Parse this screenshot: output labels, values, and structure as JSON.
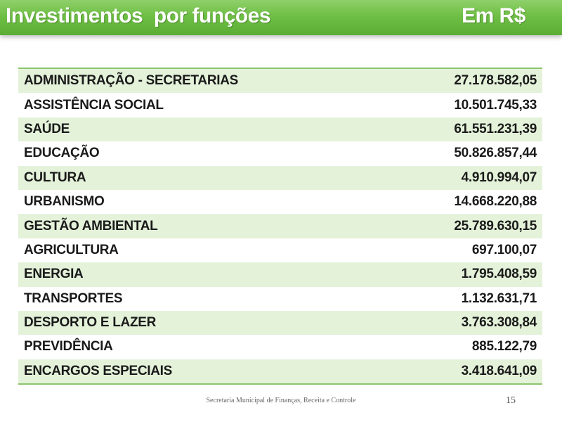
{
  "header": {
    "title": "Investimentos  por funções",
    "unit": "Em R$"
  },
  "table": {
    "rows": [
      {
        "label": "ADMINISTRAÇÃO - SECRETARIAS",
        "value": "27.178.582,05"
      },
      {
        "label": "ASSISTÊNCIA SOCIAL",
        "value": "10.501.745,33"
      },
      {
        "label": "SAÚDE",
        "value": "61.551.231,39"
      },
      {
        "label": "EDUCAÇÃO",
        "value": "50.826.857,44"
      },
      {
        "label": "CULTURA",
        "value": "4.910.994,07"
      },
      {
        "label": "URBANISMO",
        "value": "14.668.220,88"
      },
      {
        "label": "GESTÃO AMBIENTAL",
        "value": "25.789.630,15"
      },
      {
        "label": "AGRICULTURA",
        "value": "697.100,07"
      },
      {
        "label": "ENERGIA",
        "value": "1.795.408,59"
      },
      {
        "label": "TRANSPORTES",
        "value": "1.132.631,71"
      },
      {
        "label": "DESPORTO E LAZER",
        "value": "3.763.308,84"
      },
      {
        "label": "PREVIDÊNCIA",
        "value": "885.122,79"
      },
      {
        "label": "ENCARGOS ESPECIAIS",
        "value": "3.418.641,09"
      }
    ]
  },
  "footer": {
    "text": "Secretaria Municipal de Finanças, Receita e Controle",
    "page_number": "15"
  },
  "colors": {
    "header_green": "#6fbf45",
    "row_tint": "#e4f2da",
    "border_green": "#8cc46c"
  }
}
